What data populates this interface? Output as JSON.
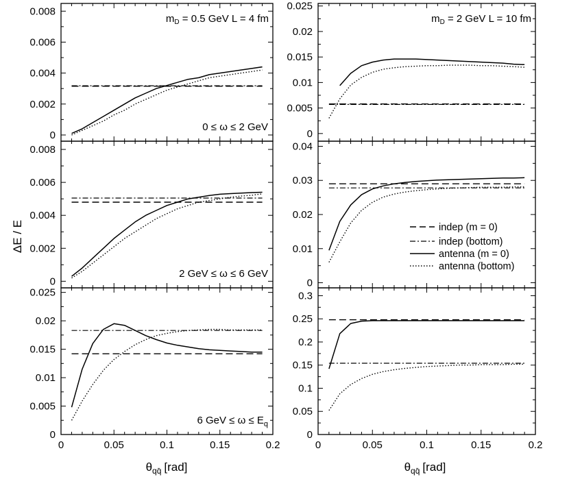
{
  "figure": {
    "ylabel": "ΔE / E",
    "xlabel": "θqq̄ [rad]",
    "xlabel_main": "θ",
    "xlabel_sub": "qq̄",
    "xlabel_unit": "[rad]"
  },
  "legend": {
    "entries": [
      {
        "label": "indep (m = 0)",
        "style": "dashed"
      },
      {
        "label": "indep (bottom)",
        "style": "dashdot"
      },
      {
        "label": "antenna (m = 0)",
        "style": "solid"
      },
      {
        "label": "antenna (bottom)",
        "style": "dotted"
      }
    ]
  },
  "chart_data": [
    {
      "type": "line",
      "panel": "top-left",
      "annotation_top": {
        "m": "m",
        "sub": "D",
        "rest": " = 0.5 GeV  L = 4 fm"
      },
      "annotation_range": "0 ≤ ω ≤ 2 GeV",
      "xlim": [
        0,
        0.2
      ],
      "ylim": [
        -0.0004,
        0.0085
      ],
      "yticks": [
        0,
        0.002,
        0.004,
        0.006,
        0.008
      ],
      "ytick_labels": [
        "0",
        "0.002",
        "0.004",
        "0.006",
        "0.008"
      ],
      "x": [
        0.01,
        0.02,
        0.03,
        0.04,
        0.05,
        0.06,
        0.07,
        0.08,
        0.09,
        0.1,
        0.11,
        0.12,
        0.13,
        0.14,
        0.15,
        0.16,
        0.17,
        0.18,
        0.19
      ],
      "series": [
        {
          "name": "indep (m = 0)",
          "style": "dashed",
          "values": [
            0.00315,
            0.00315,
            0.00315,
            0.00315,
            0.00315,
            0.00315,
            0.00315,
            0.00315,
            0.00315,
            0.00315,
            0.00315,
            0.00315,
            0.00315,
            0.00315,
            0.00315,
            0.00315,
            0.00315,
            0.00315,
            0.00315
          ]
        },
        {
          "name": "indep (bottom)",
          "style": "dashdot",
          "values": [
            0.00318,
            0.00318,
            0.00318,
            0.00318,
            0.00318,
            0.00318,
            0.00318,
            0.00318,
            0.00318,
            0.00318,
            0.00318,
            0.00318,
            0.00318,
            0.00318,
            0.00318,
            0.00318,
            0.00318,
            0.00318,
            0.00318
          ]
        },
        {
          "name": "antenna (m = 0)",
          "style": "solid",
          "values": [
            0.0001,
            0.0004,
            0.0008,
            0.0012,
            0.0016,
            0.002,
            0.0024,
            0.0027,
            0.003,
            0.0032,
            0.0034,
            0.0036,
            0.0037,
            0.0039,
            0.004,
            0.0041,
            0.0042,
            0.0043,
            0.0044
          ]
        },
        {
          "name": "antenna (bottom)",
          "style": "dotted",
          "values": [
            0.0,
            0.0003,
            0.0006,
            0.0009,
            0.0013,
            0.0016,
            0.002,
            0.0023,
            0.0026,
            0.0029,
            0.0031,
            0.0033,
            0.0035,
            0.0037,
            0.0038,
            0.0039,
            0.004,
            0.0041,
            0.0042
          ]
        }
      ]
    },
    {
      "type": "line",
      "panel": "top-right",
      "annotation_top": {
        "m": "m",
        "sub": "D",
        "rest": " = 2 GeV  L = 10 fm"
      },
      "annotation_range": "",
      "xlim": [
        0,
        0.2
      ],
      "ylim": [
        -0.0015,
        0.0255
      ],
      "yticks": [
        0,
        0.005,
        0.01,
        0.015,
        0.02,
        0.025
      ],
      "ytick_labels": [
        "0",
        "0.005",
        "0.01",
        "0.015",
        "0.02",
        "0.025"
      ],
      "x": [
        0.01,
        0.02,
        0.03,
        0.04,
        0.05,
        0.06,
        0.07,
        0.08,
        0.09,
        0.1,
        0.11,
        0.12,
        0.13,
        0.14,
        0.15,
        0.16,
        0.17,
        0.18,
        0.19
      ],
      "series": [
        {
          "name": "indep (m = 0)",
          "style": "dashed",
          "values": [
            0.0058,
            0.0058,
            0.0058,
            0.0058,
            0.0058,
            0.0058,
            0.0058,
            0.0058,
            0.0058,
            0.0058,
            0.0058,
            0.0058,
            0.0058,
            0.0058,
            0.0058,
            0.0058,
            0.0058,
            0.0058,
            0.0058
          ]
        },
        {
          "name": "indep (bottom)",
          "style": "dashdot",
          "values": [
            0.0057,
            0.0057,
            0.0057,
            0.0057,
            0.0057,
            0.0057,
            0.0057,
            0.0057,
            0.0057,
            0.0057,
            0.0057,
            0.0057,
            0.0057,
            0.0057,
            0.0057,
            0.0057,
            0.0057,
            0.0057,
            0.0057
          ]
        },
        {
          "name": "antenna (m = 0)",
          "style": "solid",
          "values": [
            null,
            0.0094,
            0.0118,
            0.0133,
            0.014,
            0.0144,
            0.0146,
            0.0146,
            0.0146,
            0.0145,
            0.0144,
            0.0143,
            0.0142,
            0.0141,
            0.014,
            0.0139,
            0.0138,
            0.0136,
            0.0135
          ]
        },
        {
          "name": "antenna (bottom)",
          "style": "dotted",
          "values": [
            0.003,
            0.0068,
            0.0095,
            0.011,
            0.012,
            0.0126,
            0.0129,
            0.0131,
            0.0132,
            0.0133,
            0.0133,
            0.0134,
            0.0134,
            0.0134,
            0.0133,
            0.0133,
            0.0132,
            0.0131,
            0.013
          ]
        }
      ]
    },
    {
      "type": "line",
      "panel": "middle-left",
      "annotation_range": "2 GeV ≤ ω ≤ 6 GeV",
      "xlim": [
        0,
        0.2
      ],
      "ylim": [
        -0.0004,
        0.0085
      ],
      "yticks": [
        0,
        0.002,
        0.004,
        0.006,
        0.008
      ],
      "ytick_labels": [
        "0",
        "0.002",
        "0.004",
        "0.006",
        "0.008"
      ],
      "x": [
        0.01,
        0.02,
        0.03,
        0.04,
        0.05,
        0.06,
        0.07,
        0.08,
        0.09,
        0.1,
        0.11,
        0.12,
        0.13,
        0.14,
        0.15,
        0.16,
        0.17,
        0.18,
        0.19
      ],
      "series": [
        {
          "name": "indep (m = 0)",
          "style": "dashed",
          "values": [
            0.0048,
            0.0048,
            0.0048,
            0.0048,
            0.0048,
            0.0048,
            0.0048,
            0.0048,
            0.0048,
            0.0048,
            0.0048,
            0.0048,
            0.0048,
            0.0048,
            0.0048,
            0.0048,
            0.0048,
            0.0048,
            0.0048
          ]
        },
        {
          "name": "indep (bottom)",
          "style": "dashdot",
          "values": [
            0.00505,
            0.00505,
            0.00505,
            0.00505,
            0.00505,
            0.00505,
            0.00505,
            0.00505,
            0.00505,
            0.00505,
            0.00505,
            0.00505,
            0.00505,
            0.00505,
            0.00505,
            0.00505,
            0.00505,
            0.00505,
            0.00505
          ]
        },
        {
          "name": "antenna (m = 0)",
          "style": "solid",
          "values": [
            0.0003,
            0.0008,
            0.0014,
            0.002,
            0.0026,
            0.0031,
            0.0036,
            0.004,
            0.0043,
            0.0046,
            0.0048,
            0.005,
            0.0051,
            0.0052,
            0.00528,
            0.00532,
            0.00535,
            0.00538,
            0.0054
          ]
        },
        {
          "name": "antenna (bottom)",
          "style": "dotted",
          "values": [
            0.0002,
            0.0006,
            0.0011,
            0.0016,
            0.0021,
            0.0026,
            0.003,
            0.0034,
            0.0038,
            0.0041,
            0.0044,
            0.0046,
            0.0048,
            0.0049,
            0.005,
            0.0051,
            0.00517,
            0.00522,
            0.0053
          ]
        }
      ]
    },
    {
      "type": "line",
      "panel": "middle-right",
      "annotation_range": "",
      "xlim": [
        0,
        0.2
      ],
      "ylim": [
        -0.0015,
        0.0415
      ],
      "yticks": [
        0,
        0.01,
        0.02,
        0.03,
        0.04
      ],
      "ytick_labels": [
        "0",
        "0.01",
        "0.02",
        "0.03",
        "0.04"
      ],
      "x": [
        0.01,
        0.02,
        0.03,
        0.04,
        0.05,
        0.06,
        0.07,
        0.08,
        0.09,
        0.1,
        0.11,
        0.12,
        0.13,
        0.14,
        0.15,
        0.16,
        0.17,
        0.18,
        0.19
      ],
      "series": [
        {
          "name": "indep (m = 0)",
          "style": "dashed",
          "values": [
            0.029,
            0.029,
            0.029,
            0.029,
            0.029,
            0.029,
            0.029,
            0.029,
            0.029,
            0.029,
            0.029,
            0.029,
            0.029,
            0.029,
            0.029,
            0.029,
            0.029,
            0.029,
            0.029
          ]
        },
        {
          "name": "indep (bottom)",
          "style": "dashdot",
          "values": [
            0.0278,
            0.0278,
            0.0278,
            0.0278,
            0.0278,
            0.0278,
            0.0278,
            0.0278,
            0.0278,
            0.0278,
            0.0278,
            0.0278,
            0.0278,
            0.0278,
            0.0278,
            0.0278,
            0.0278,
            0.0278,
            0.0278
          ]
        },
        {
          "name": "antenna (m = 0)",
          "style": "solid",
          "values": [
            0.0095,
            0.018,
            0.0228,
            0.0258,
            0.0275,
            0.0284,
            0.029,
            0.0294,
            0.0297,
            0.0299,
            0.0301,
            0.0302,
            0.0303,
            0.0304,
            0.0305,
            0.0306,
            0.0307,
            0.0307,
            0.0308
          ]
        },
        {
          "name": "antenna (bottom)",
          "style": "dotted",
          "values": [
            0.006,
            0.012,
            0.0175,
            0.0212,
            0.0236,
            0.0251,
            0.026,
            0.0266,
            0.027,
            0.0273,
            0.0275,
            0.0277,
            0.0278,
            0.0279,
            0.028,
            0.028,
            0.028,
            0.0281,
            0.0281
          ]
        }
      ]
    },
    {
      "type": "line",
      "panel": "bottom-left",
      "annotation_range": "6 GeV ≤ ω ≤ E",
      "annotation_range_sub": "q",
      "xlim": [
        0,
        0.2
      ],
      "ylim": [
        0,
        0.0258
      ],
      "yticks": [
        0,
        0.005,
        0.01,
        0.015,
        0.02,
        0.025
      ],
      "ytick_labels": [
        "0",
        "0.005",
        "0.01",
        "0.015",
        "0.02",
        "0.025"
      ],
      "x": [
        0.01,
        0.02,
        0.03,
        0.04,
        0.05,
        0.06,
        0.07,
        0.08,
        0.09,
        0.1,
        0.11,
        0.12,
        0.13,
        0.14,
        0.15,
        0.16,
        0.17,
        0.18,
        0.19
      ],
      "series": [
        {
          "name": "indep (m = 0)",
          "style": "dashed",
          "values": [
            0.0142,
            0.0142,
            0.0142,
            0.0142,
            0.0142,
            0.0142,
            0.0142,
            0.0142,
            0.0142,
            0.0142,
            0.0142,
            0.0142,
            0.0142,
            0.0142,
            0.0142,
            0.0142,
            0.0142,
            0.0142,
            0.0142
          ]
        },
        {
          "name": "indep (bottom)",
          "style": "dashdot",
          "values": [
            0.0183,
            0.0183,
            0.0183,
            0.0183,
            0.0183,
            0.0183,
            0.0183,
            0.0183,
            0.0183,
            0.0183,
            0.0183,
            0.0183,
            0.0183,
            0.0183,
            0.0183,
            0.0183,
            0.0183,
            0.0183,
            0.0183
          ]
        },
        {
          "name": "antenna (m = 0)",
          "style": "solid",
          "values": [
            0.0048,
            0.0115,
            0.016,
            0.0185,
            0.0195,
            0.0192,
            0.0183,
            0.0174,
            0.0167,
            0.0161,
            0.0157,
            0.0154,
            0.0151,
            0.0149,
            0.0148,
            0.0147,
            0.0146,
            0.0145,
            0.0145
          ]
        },
        {
          "name": "antenna (bottom)",
          "style": "dotted",
          "values": [
            0.0025,
            0.0059,
            0.0088,
            0.0113,
            0.0132,
            0.0146,
            0.0158,
            0.0167,
            0.0174,
            0.0178,
            0.0181,
            0.0183,
            0.0184,
            0.0185,
            0.0185,
            0.0184,
            0.0184,
            0.0184,
            0.0184
          ]
        }
      ]
    },
    {
      "type": "line",
      "panel": "bottom-right",
      "annotation_range": "",
      "xlim": [
        0,
        0.2
      ],
      "ylim": [
        0,
        0.317
      ],
      "yticks": [
        0,
        0.05,
        0.1,
        0.15,
        0.2,
        0.25,
        0.3
      ],
      "ytick_labels": [
        "0",
        "0.05",
        "0.1",
        "0.15",
        "0.2",
        "0.25",
        "0.3"
      ],
      "xticks": [
        0,
        0.05,
        0.1,
        0.15,
        0.2
      ],
      "xtick_labels": [
        "0",
        "0.05",
        "0.1",
        "0.15",
        "0.2"
      ],
      "x": [
        0.01,
        0.02,
        0.03,
        0.04,
        0.05,
        0.06,
        0.07,
        0.08,
        0.09,
        0.1,
        0.11,
        0.12,
        0.13,
        0.14,
        0.15,
        0.16,
        0.17,
        0.18,
        0.19
      ],
      "series": [
        {
          "name": "indep (m = 0)",
          "style": "dashed",
          "values": [
            0.248,
            0.248,
            0.248,
            0.248,
            0.248,
            0.248,
            0.248,
            0.248,
            0.248,
            0.248,
            0.248,
            0.248,
            0.248,
            0.248,
            0.248,
            0.248,
            0.248,
            0.248,
            0.248
          ]
        },
        {
          "name": "indep (bottom)",
          "style": "dashdot",
          "values": [
            0.154,
            0.154,
            0.154,
            0.154,
            0.154,
            0.154,
            0.154,
            0.154,
            0.154,
            0.154,
            0.154,
            0.154,
            0.154,
            0.154,
            0.154,
            0.154,
            0.154,
            0.154,
            0.154
          ]
        },
        {
          "name": "antenna (m = 0)",
          "style": "solid",
          "values": [
            0.142,
            0.218,
            0.24,
            0.245,
            0.246,
            0.246,
            0.246,
            0.246,
            0.246,
            0.246,
            0.246,
            0.246,
            0.246,
            0.246,
            0.246,
            0.246,
            0.246,
            0.246,
            0.246
          ]
        },
        {
          "name": "antenna (bottom)",
          "style": "dotted",
          "values": [
            0.052,
            0.088,
            0.108,
            0.121,
            0.13,
            0.136,
            0.14,
            0.143,
            0.145,
            0.147,
            0.148,
            0.149,
            0.15,
            0.15,
            0.151,
            0.151,
            0.151,
            0.152,
            0.152
          ]
        }
      ]
    }
  ]
}
